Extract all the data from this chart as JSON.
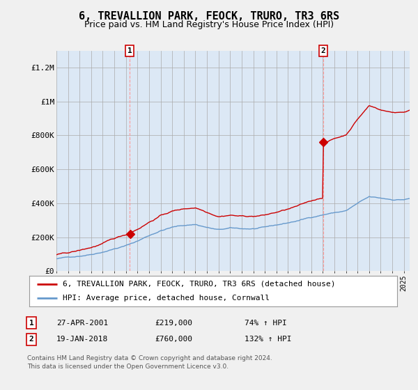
{
  "title": "6, TREVALLION PARK, FEOCK, TRURO, TR3 6RS",
  "subtitle": "Price paid vs. HM Land Registry's House Price Index (HPI)",
  "title_fontsize": 11,
  "subtitle_fontsize": 9,
  "background_color": "#f0f0f0",
  "plot_bg_color": "#dce8f5",
  "ylim": [
    0,
    1300000
  ],
  "yticks": [
    0,
    200000,
    400000,
    600000,
    800000,
    1000000,
    1200000
  ],
  "ytick_labels": [
    "£0",
    "£200K",
    "£400K",
    "£600K",
    "£800K",
    "£1M",
    "£1.2M"
  ],
  "sale1_date_num": 2001.32,
  "sale1_price": 219000,
  "sale1_label": "1",
  "sale2_date_num": 2018.05,
  "sale2_price": 760000,
  "sale2_label": "2",
  "legend_line1": "6, TREVALLION PARK, FEOCK, TRURO, TR3 6RS (detached house)",
  "legend_line2": "HPI: Average price, detached house, Cornwall",
  "table_row1_num": "1",
  "table_row1_date": "27-APR-2001",
  "table_row1_price": "£219,000",
  "table_row1_hpi": "74% ↑ HPI",
  "table_row2_num": "2",
  "table_row2_date": "19-JAN-2018",
  "table_row2_price": "£760,000",
  "table_row2_hpi": "132% ↑ HPI",
  "footnote1": "Contains HM Land Registry data © Crown copyright and database right 2024.",
  "footnote2": "This data is licensed under the Open Government Licence v3.0.",
  "hpi_color": "#6699cc",
  "price_color": "#cc0000",
  "marker_color": "#cc0000",
  "dashed_line_color": "#ff9999"
}
